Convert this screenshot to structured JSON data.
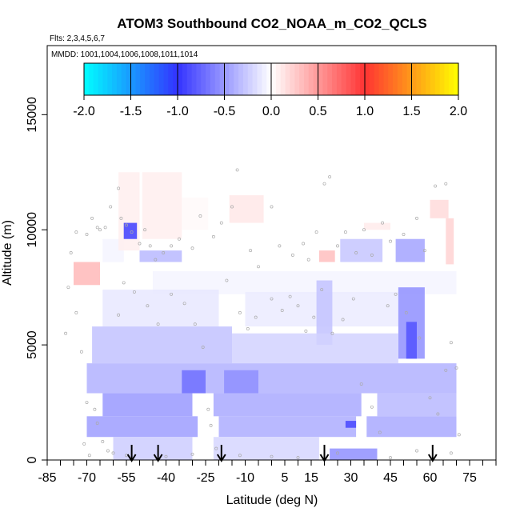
{
  "chart_data": {
    "type": "heatmap",
    "title": "ATOM3 Southbound CO2_NOAA_m_CO2_QCLS",
    "subtitle_flights": "Flts: 2,3,4,5,6,7",
    "subtitle_dates": "MMDD: 1001,1004,1006,1008,1011,1014",
    "xlabel": "Latitude (deg N)",
    "ylabel": "Altitude (m)",
    "xlim": [
      -85,
      85
    ],
    "ylim": [
      0,
      18000
    ],
    "x_ticks_labeled": [
      -85,
      -70,
      -55,
      -40,
      -25,
      -10,
      5,
      15,
      30,
      45,
      60,
      75
    ],
    "x_ticks_minor_step": 5,
    "y_ticks": [
      0,
      5000,
      10000,
      15000
    ],
    "colorbar": {
      "min": -2.0,
      "max": 2.0,
      "ticks": [
        "-2.0",
        "-1.5",
        "-1.0",
        "-0.5",
        "0.0",
        "0.5",
        "1.0",
        "1.5",
        "2.0"
      ],
      "colors": [
        "#00ffff",
        "#3333ff",
        "#ffffff",
        "#ff3333",
        "#ffff00"
      ]
    },
    "arrows_latitude": [
      -53,
      -43,
      -19,
      20,
      61
    ],
    "cells": [
      {
        "x0": -75,
        "x1": -65,
        "y0": 7600,
        "y1": 8600,
        "v": 0.35
      },
      {
        "x0": -64,
        "x1": -56,
        "y0": 8600,
        "y1": 9600,
        "v": -0.05
      },
      {
        "x0": -58,
        "x1": -50,
        "y0": 9100,
        "y1": 12500,
        "v": 0.08
      },
      {
        "x0": -56,
        "x1": -51,
        "y0": 9600,
        "y1": 10300,
        "v": -0.95
      },
      {
        "x0": -49,
        "x1": -34,
        "y0": 9600,
        "y1": 12500,
        "v": 0.08
      },
      {
        "x0": -50,
        "x1": -34,
        "y0": 8600,
        "y1": 9100,
        "v": -0.35
      },
      {
        "x0": -34,
        "x1": -24,
        "y0": 10000,
        "y1": 11400,
        "v": 0.03
      },
      {
        "x0": -16,
        "x1": -3,
        "y0": 10300,
        "y1": 11500,
        "v": 0.12
      },
      {
        "x0": 35,
        "x1": 45,
        "y0": 10000,
        "y1": 10300,
        "v": 0.1
      },
      {
        "x0": 60,
        "x1": 67,
        "y0": 10500,
        "y1": 11300,
        "v": 0.18
      },
      {
        "x0": 66,
        "x1": 69,
        "y0": 8500,
        "y1": 10500,
        "v": 0.22
      },
      {
        "x0": 18,
        "x1": 24,
        "y0": 8600,
        "y1": 9100,
        "v": 0.32
      },
      {
        "x0": 26,
        "x1": 42,
        "y0": 8600,
        "y1": 9600,
        "v": -0.28
      },
      {
        "x0": 47,
        "x1": 58,
        "y0": 8600,
        "y1": 9600,
        "v": -0.45
      },
      {
        "x0": -45,
        "x1": 70,
        "y0": 7200,
        "y1": 8200,
        "v": -0.05
      },
      {
        "x0": -64,
        "x1": -20,
        "y0": 5800,
        "y1": 7400,
        "v": -0.12
      },
      {
        "x0": -10,
        "x1": 48,
        "y0": 5800,
        "y1": 7300,
        "v": -0.1
      },
      {
        "x0": 48,
        "x1": 58,
        "y0": 4400,
        "y1": 7500,
        "v": -0.55
      },
      {
        "x0": 51,
        "x1": 55,
        "y0": 4400,
        "y1": 6000,
        "v": -0.85
      },
      {
        "x0": 17,
        "x1": 23,
        "y0": 5000,
        "y1": 7800,
        "v": -0.3
      },
      {
        "x0": -68,
        "x1": -15,
        "y0": 4200,
        "y1": 5800,
        "v": -0.3
      },
      {
        "x0": -15,
        "x1": 48,
        "y0": 4200,
        "y1": 5500,
        "v": -0.22
      },
      {
        "x0": -70,
        "x1": 70,
        "y0": 2900,
        "y1": 4200,
        "v": -0.38
      },
      {
        "x0": -34,
        "x1": -25,
        "y0": 2900,
        "y1": 3900,
        "v": -0.7
      },
      {
        "x0": -18,
        "x1": -5,
        "y0": 2900,
        "y1": 3900,
        "v": -0.55
      },
      {
        "x0": -64,
        "x1": -30,
        "y0": 1900,
        "y1": 2900,
        "v": -0.5
      },
      {
        "x0": -22,
        "x1": 34,
        "y0": 1900,
        "y1": 2900,
        "v": -0.42
      },
      {
        "x0": 40,
        "x1": 70,
        "y0": 1900,
        "y1": 2900,
        "v": -0.35
      },
      {
        "x0": -70,
        "x1": -28,
        "y0": 1000,
        "y1": 1900,
        "v": -0.48
      },
      {
        "x0": -20,
        "x1": 32,
        "y0": 1000,
        "y1": 1900,
        "v": -0.4
      },
      {
        "x0": 28,
        "x1": 32,
        "y0": 1400,
        "y1": 1700,
        "v": -0.9
      },
      {
        "x0": 36,
        "x1": 70,
        "y0": 1000,
        "y1": 1900,
        "v": -0.42
      },
      {
        "x0": -60,
        "x1": -30,
        "y0": 0,
        "y1": 1000,
        "v": -0.25
      },
      {
        "x0": -22,
        "x1": 18,
        "y0": 0,
        "y1": 1000,
        "v": -0.2
      },
      {
        "x0": 22,
        "x1": 40,
        "y0": 0,
        "y1": 500,
        "v": -0.55
      }
    ],
    "points": [
      [
        -76,
        9000
      ],
      [
        -74,
        9900
      ],
      [
        -70,
        9800
      ],
      [
        -68,
        10500
      ],
      [
        -66,
        10100
      ],
      [
        -65,
        10000
      ],
      [
        -63,
        10100
      ],
      [
        -61,
        11000
      ],
      [
        -58,
        11800
      ],
      [
        -57,
        10500
      ],
      [
        -55,
        10200
      ],
      [
        -53,
        9900
      ],
      [
        -50,
        9400
      ],
      [
        -48,
        10000
      ],
      [
        -46,
        9300
      ],
      [
        -44,
        8700
      ],
      [
        -41,
        9000
      ],
      [
        -38,
        9300
      ],
      [
        -35,
        9600
      ],
      [
        -30,
        9200
      ],
      [
        -27,
        10600
      ],
      [
        -22,
        9700
      ],
      [
        -19,
        10300
      ],
      [
        -15,
        11000
      ],
      [
        -13,
        12600
      ],
      [
        -8,
        9100
      ],
      [
        -5,
        8400
      ],
      [
        0,
        11000
      ],
      [
        3,
        9300
      ],
      [
        8,
        8900
      ],
      [
        12,
        9400
      ],
      [
        14,
        8700
      ],
      [
        17,
        9900
      ],
      [
        20,
        12000
      ],
      [
        22,
        12300
      ],
      [
        25,
        9300
      ],
      [
        28,
        9900
      ],
      [
        32,
        9000
      ],
      [
        35,
        10000
      ],
      [
        38,
        8900
      ],
      [
        42,
        10300
      ],
      [
        45,
        9500
      ],
      [
        50,
        9800
      ],
      [
        55,
        10500
      ],
      [
        58,
        9100
      ],
      [
        62,
        11900
      ],
      [
        66,
        12000
      ],
      [
        -78,
        5500
      ],
      [
        -77,
        7500
      ],
      [
        -74,
        6400
      ],
      [
        -72,
        4700
      ],
      [
        -70,
        2500
      ],
      [
        -67,
        2200
      ],
      [
        -66,
        1600
      ],
      [
        -64,
        800
      ],
      [
        -62,
        400
      ],
      [
        -60,
        300
      ],
      [
        -58,
        6300
      ],
      [
        -56,
        7700
      ],
      [
        -52,
        7300
      ],
      [
        -47,
        6700
      ],
      [
        -43,
        5900
      ],
      [
        -38,
        7200
      ],
      [
        -33,
        6800
      ],
      [
        -29,
        5900
      ],
      [
        -26,
        4900
      ],
      [
        -24,
        2200
      ],
      [
        -23,
        1500
      ],
      [
        -21,
        500
      ],
      [
        -17,
        7800
      ],
      [
        -12,
        6400
      ],
      [
        -9,
        5700
      ],
      [
        -6,
        6200
      ],
      [
        0,
        7000
      ],
      [
        4,
        6500
      ],
      [
        7,
        7100
      ],
      [
        10,
        6700
      ],
      [
        13,
        5600
      ],
      [
        16,
        6200
      ],
      [
        19,
        7400
      ],
      [
        23,
        5500
      ],
      [
        27,
        6100
      ],
      [
        31,
        7000
      ],
      [
        34,
        3300
      ],
      [
        38,
        2300
      ],
      [
        41,
        1200
      ],
      [
        44,
        6700
      ],
      [
        47,
        7200
      ],
      [
        51,
        6400
      ],
      [
        56,
        5300
      ],
      [
        60,
        2700
      ],
      [
        63,
        2000
      ],
      [
        66,
        3900
      ],
      [
        68,
        5100
      ],
      [
        70,
        4000
      ],
      [
        71,
        1100
      ],
      [
        -71,
        700
      ],
      [
        -69,
        200
      ],
      [
        -55,
        200
      ],
      [
        -40,
        150
      ],
      [
        -30,
        250
      ],
      [
        -12,
        200
      ],
      [
        0,
        150
      ],
      [
        10,
        100
      ],
      [
        25,
        300
      ],
      [
        45,
        100
      ],
      [
        55,
        400
      ],
      [
        68,
        300
      ]
    ]
  }
}
